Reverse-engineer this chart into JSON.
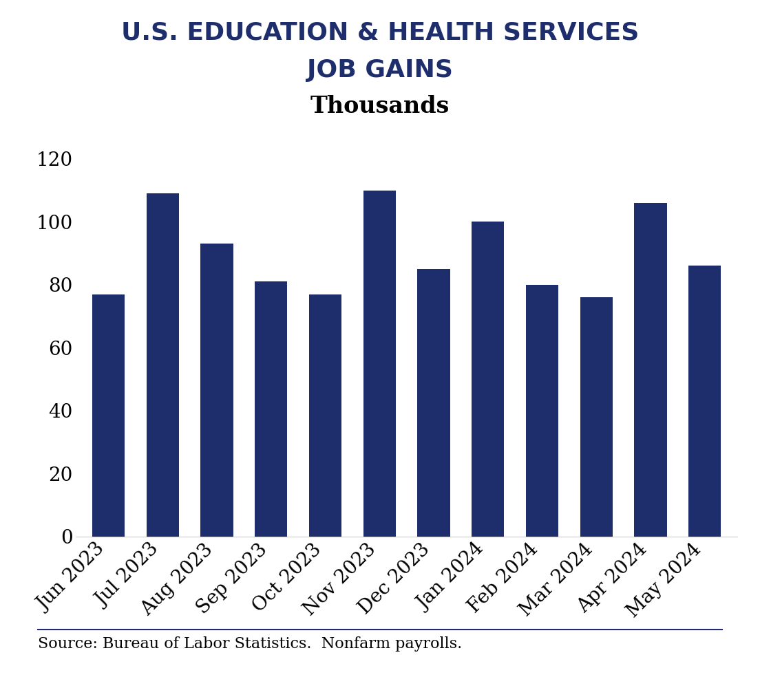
{
  "title_line1": "U.S. EDUCATION & HEALTH SERVICES",
  "title_line2": "JOB GAINS",
  "subtitle": "Thousands",
  "categories": [
    "Jun 2023",
    "Jul 2023",
    "Aug 2023",
    "Sep 2023",
    "Oct 2023",
    "Nov 2023",
    "Dec 2023",
    "Jan 2024",
    "Feb 2024",
    "Mar 2024",
    "Apr 2024",
    "May 2024"
  ],
  "values": [
    77,
    109,
    93,
    81,
    77,
    110,
    85,
    100,
    80,
    76,
    106,
    86
  ],
  "bar_color": "#1e2d6b",
  "title_color": "#1e2d6b",
  "subtitle_color": "#000000",
  "tick_label_color": "#000000",
  "ytick_color": "#000000",
  "source_text": "Source: Bureau of Labor Statistics.  Nonfarm payrolls.",
  "ylim": [
    0,
    130
  ],
  "yticks": [
    0,
    20,
    40,
    60,
    80,
    100,
    120
  ],
  "background_color": "#ffffff",
  "separator_color": "#1e2d6b",
  "title_fontsize": 26,
  "subtitle_fontsize": 24,
  "tick_fontsize": 20,
  "source_fontsize": 16,
  "bar_width": 0.6
}
